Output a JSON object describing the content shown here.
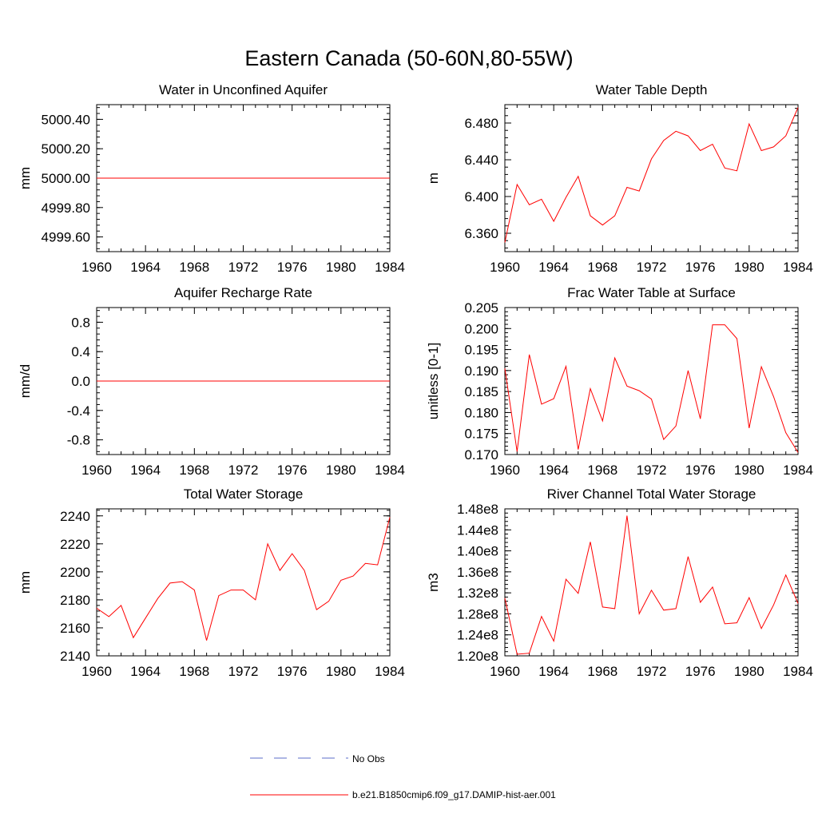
{
  "figure": {
    "title": "Eastern Canada (50-60N,80-55W)",
    "legend": [
      {
        "label": "No Obs",
        "color": "#5b6cc9",
        "dash": true
      },
      {
        "label": "b.e21.B1850cmip6.f09_g17.DAMIP-hist-aer.001",
        "color": "#ff0000",
        "dash": false
      }
    ],
    "legend_label_0": "No Obs",
    "legend_label_1": "b.e21.B1850cmip6.f09_g17.DAMIP-hist-aer.001"
  },
  "chart_data": [
    {
      "type": "line",
      "title": "Water in Unconfined Aquifer",
      "ylabel": "mm",
      "xlim": [
        1960,
        1984
      ],
      "ylim": [
        4999.5,
        5000.5
      ],
      "xticks": [
        1960,
        1964,
        1968,
        1972,
        1976,
        1980,
        1984
      ],
      "xtick_labels": [
        "1960",
        "1964",
        "1968",
        "1972",
        "1976",
        "1980",
        "1984"
      ],
      "yticks": [
        4999.6,
        4999.8,
        5000.0,
        5000.2,
        5000.4
      ],
      "ytick_labels": [
        "4999.60",
        "4999.80",
        "5000.00",
        "5000.20",
        "5000.40"
      ],
      "series": [
        {
          "color": "#ff0000",
          "x": [
            1960,
            1961,
            1962,
            1963,
            1964,
            1965,
            1966,
            1967,
            1968,
            1969,
            1970,
            1971,
            1972,
            1973,
            1974,
            1975,
            1976,
            1977,
            1978,
            1979,
            1980,
            1981,
            1982,
            1983,
            1984
          ],
          "y": [
            5000,
            5000,
            5000,
            5000,
            5000,
            5000,
            5000,
            5000,
            5000,
            5000,
            5000,
            5000,
            5000,
            5000,
            5000,
            5000,
            5000,
            5000,
            5000,
            5000,
            5000,
            5000,
            5000,
            5000,
            5000
          ]
        }
      ]
    },
    {
      "type": "line",
      "title": "Water Table Depth",
      "ylabel": "m",
      "xlim": [
        1960,
        1984
      ],
      "ylim": [
        6.34,
        6.5
      ],
      "xticks": [
        1960,
        1964,
        1968,
        1972,
        1976,
        1980,
        1984
      ],
      "xtick_labels": [
        "1960",
        "1964",
        "1968",
        "1972",
        "1976",
        "1980",
        "1984"
      ],
      "yticks": [
        6.36,
        6.4,
        6.44,
        6.48
      ],
      "ytick_labels": [
        "6.360",
        "6.400",
        "6.440",
        "6.480"
      ],
      "series": [
        {
          "color": "#ff0000",
          "x": [
            1960,
            1961,
            1962,
            1963,
            1964,
            1965,
            1966,
            1967,
            1968,
            1969,
            1970,
            1971,
            1972,
            1973,
            1974,
            1975,
            1976,
            1977,
            1978,
            1979,
            1980,
            1981,
            1982,
            1983,
            1984
          ],
          "y": [
            6.35,
            6.413,
            6.391,
            6.397,
            6.373,
            6.399,
            6.422,
            6.379,
            6.369,
            6.379,
            6.41,
            6.406,
            6.441,
            6.461,
            6.471,
            6.466,
            6.45,
            6.457,
            6.431,
            6.428,
            6.479,
            6.45,
            6.454,
            6.466,
            6.497
          ]
        }
      ]
    },
    {
      "type": "line",
      "title": "Aquifer Recharge Rate",
      "ylabel": "mm/d",
      "xlim": [
        1960,
        1984
      ],
      "ylim": [
        -1.0,
        1.0
      ],
      "xticks": [
        1960,
        1964,
        1968,
        1972,
        1976,
        1980,
        1984
      ],
      "xtick_labels": [
        "1960",
        "1964",
        "1968",
        "1972",
        "1976",
        "1980",
        "1984"
      ],
      "yticks": [
        -0.8,
        -0.4,
        0.0,
        0.4,
        0.8
      ],
      "ytick_labels": [
        "-0.8",
        "-0.4",
        "0.0",
        "0.4",
        "0.8"
      ],
      "series": [
        {
          "color": "#ff0000",
          "x": [
            1960,
            1961,
            1962,
            1963,
            1964,
            1965,
            1966,
            1967,
            1968,
            1969,
            1970,
            1971,
            1972,
            1973,
            1974,
            1975,
            1976,
            1977,
            1978,
            1979,
            1980,
            1981,
            1982,
            1983,
            1984
          ],
          "y": [
            0,
            0,
            0,
            0,
            0,
            0,
            0,
            0,
            0,
            0,
            0,
            0,
            0,
            0,
            0,
            0,
            0,
            0,
            0,
            0,
            0,
            0,
            0,
            0,
            0
          ]
        }
      ]
    },
    {
      "type": "line",
      "title": "Frac Water Table at Surface",
      "ylabel": "unitless [0-1]",
      "xlim": [
        1960,
        1984
      ],
      "ylim": [
        0.17,
        0.205
      ],
      "xticks": [
        1960,
        1964,
        1968,
        1972,
        1976,
        1980,
        1984
      ],
      "xtick_labels": [
        "1960",
        "1964",
        "1968",
        "1972",
        "1976",
        "1980",
        "1984"
      ],
      "yticks": [
        0.17,
        0.175,
        0.18,
        0.185,
        0.19,
        0.195,
        0.2,
        0.205
      ],
      "ytick_labels": [
        "0.170",
        "0.175",
        "0.180",
        "0.185",
        "0.190",
        "0.195",
        "0.200",
        "0.205"
      ],
      "series": [
        {
          "color": "#ff0000",
          "x": [
            1960,
            1961,
            1962,
            1963,
            1964,
            1965,
            1966,
            1967,
            1968,
            1969,
            1970,
            1971,
            1972,
            1973,
            1974,
            1975,
            1976,
            1977,
            1978,
            1979,
            1980,
            1981,
            1982,
            1983,
            1984
          ],
          "y": [
            0.1905,
            0.1707,
            0.1938,
            0.182,
            0.1833,
            0.191,
            0.1712,
            0.1857,
            0.178,
            0.193,
            0.1863,
            0.1852,
            0.1832,
            0.1736,
            0.1768,
            0.19,
            0.1785,
            0.2009,
            0.2009,
            0.1976,
            0.1763,
            0.1909,
            0.1838,
            0.1752,
            0.1705
          ]
        }
      ]
    },
    {
      "type": "line",
      "title": "Total Water Storage",
      "ylabel": "mm",
      "xlim": [
        1960,
        1984
      ],
      "ylim": [
        2140,
        2245
      ],
      "xticks": [
        1960,
        1964,
        1968,
        1972,
        1976,
        1980,
        1984
      ],
      "xtick_labels": [
        "1960",
        "1964",
        "1968",
        "1972",
        "1976",
        "1980",
        "1984"
      ],
      "yticks": [
        2140,
        2160,
        2180,
        2200,
        2220,
        2240
      ],
      "ytick_labels": [
        "2140",
        "2160",
        "2180",
        "2200",
        "2220",
        "2240"
      ],
      "series": [
        {
          "color": "#ff0000",
          "x": [
            1960,
            1961,
            1962,
            1963,
            1964,
            1965,
            1966,
            1967,
            1968,
            1969,
            1970,
            1971,
            1972,
            1973,
            1974,
            1975,
            1976,
            1977,
            1978,
            1979,
            1980,
            1981,
            1982,
            1983,
            1984
          ],
          "y": [
            2174,
            2168,
            2176,
            2153,
            2167,
            2181,
            2192,
            2193,
            2187,
            2151,
            2183,
            2187,
            2187,
            2180,
            2220,
            2201,
            2213,
            2201,
            2173,
            2179,
            2194,
            2197,
            2206,
            2205,
            2239
          ]
        }
      ]
    },
    {
      "type": "line",
      "title": "River Channel Total Water Storage",
      "ylabel": "m3",
      "xlim": [
        1960,
        1984
      ],
      "ylim": [
        120000000,
        148000000
      ],
      "xticks": [
        1960,
        1964,
        1968,
        1972,
        1976,
        1980,
        1984
      ],
      "xtick_labels": [
        "1960",
        "1964",
        "1968",
        "1972",
        "1976",
        "1980",
        "1984"
      ],
      "yticks": [
        120000000,
        124000000,
        128000000,
        132000000,
        136000000,
        140000000,
        144000000,
        148000000
      ],
      "ytick_labels": [
        "1.20e8",
        "1.24e8",
        "1.28e8",
        "1.32e8",
        "1.36e8",
        "1.40e8",
        "1.44e8",
        "1.48e8"
      ],
      "series": [
        {
          "color": "#ff0000",
          "x": [
            1960,
            1961,
            1962,
            1963,
            1964,
            1965,
            1966,
            1967,
            1968,
            1969,
            1970,
            1971,
            1972,
            1973,
            1974,
            1975,
            1976,
            1977,
            1978,
            1979,
            1980,
            1981,
            1982,
            1983,
            1984
          ],
          "y": [
            131000000,
            120300000,
            120500000,
            127500000,
            122800000,
            134600000,
            131900000,
            141700000,
            129300000,
            129000000,
            146700000,
            128000000,
            132500000,
            128700000,
            129000000,
            138900000,
            130200000,
            133100000,
            126100000,
            126300000,
            131100000,
            125200000,
            129700000,
            135400000,
            130000000
          ]
        }
      ]
    }
  ]
}
